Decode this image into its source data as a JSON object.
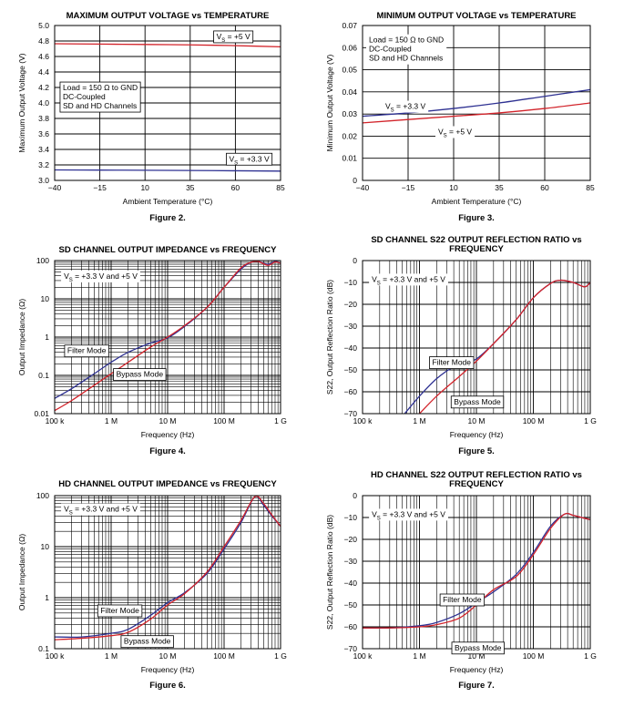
{
  "colors": {
    "red": "#d2232a",
    "blue": "#2e3192",
    "grid": "#000000"
  },
  "chart_data": [
    {
      "type": "line",
      "title": "MAXIMUM OUTPUT VOLTAGE vs TEMPERATURE",
      "figure": "Figure 2.",
      "xlabel": "Ambient Temperature (°C)",
      "ylabel": "Maximum Output Voltage (V)",
      "xscale": "linear",
      "yscale": "linear",
      "xlim": [
        -40,
        85
      ],
      "ylim": [
        3.0,
        5.0
      ],
      "xticks": [
        -40,
        -15,
        10,
        35,
        60,
        85
      ],
      "xtick_labels": [
        "−40",
        "−15",
        "10",
        "35",
        "60",
        "85"
      ],
      "yticks": [
        3.0,
        3.2,
        3.4,
        3.6,
        3.8,
        4.0,
        4.2,
        4.4,
        4.6,
        4.8,
        5.0
      ],
      "ytick_labels": [
        "3.0",
        "3.2",
        "3.4",
        "3.6",
        "3.8",
        "4.0",
        "4.2",
        "4.4",
        "4.6",
        "4.8",
        "5.0"
      ],
      "minor_x": [],
      "minor_y": [],
      "series": [
        {
          "name": "VS = +5 V",
          "color": "red",
          "x": [
            -40,
            -15,
            10,
            35,
            60,
            85
          ],
          "y": [
            4.765,
            4.76,
            4.755,
            4.75,
            4.74,
            4.725
          ]
        },
        {
          "name": "VS = +3.3 V",
          "color": "blue",
          "x": [
            -40,
            -15,
            10,
            35,
            60,
            85
          ],
          "y": [
            3.135,
            3.133,
            3.131,
            3.128,
            3.124,
            3.12
          ]
        }
      ],
      "annotations": [
        {
          "lines": [
            "Load = 150 Ω to GND",
            "DC-Coupled",
            "SD and HD Channels"
          ],
          "x": -37,
          "y": 4.27,
          "box": true
        },
        {
          "lines": [
            "V|S| = +5 V"
          ],
          "x": 48,
          "y": 4.93,
          "box": true
        },
        {
          "lines": [
            "V|S| = +3.3 V"
          ],
          "x": 55,
          "y": 3.35,
          "box": true
        }
      ]
    },
    {
      "type": "line",
      "title": "MINIMUM OUTPUT VOLTAGE vs TEMPERATURE",
      "figure": "Figure 3.",
      "xlabel": "Ambient Temperature (°C)",
      "ylabel": "Minimum Output Voltage (V)",
      "xscale": "linear",
      "yscale": "linear",
      "xlim": [
        -40,
        85
      ],
      "ylim": [
        0,
        0.07
      ],
      "xticks": [
        -40,
        -15,
        10,
        35,
        60,
        85
      ],
      "xtick_labels": [
        "−40",
        "−15",
        "10",
        "35",
        "60",
        "85"
      ],
      "yticks": [
        0,
        0.01,
        0.02,
        0.03,
        0.04,
        0.05,
        0.06,
        0.07
      ],
      "ytick_labels": [
        "0",
        "0.01",
        "0.02",
        "0.03",
        "0.04",
        "0.05",
        "0.06",
        "0.07"
      ],
      "minor_x": [],
      "minor_y": [],
      "series": [
        {
          "name": "VS = +3.3 V",
          "color": "blue",
          "x": [
            -40,
            -15,
            10,
            35,
            60,
            85
          ],
          "y": [
            0.029,
            0.0305,
            0.0325,
            0.035,
            0.038,
            0.041
          ]
        },
        {
          "name": "VS = +5 V",
          "color": "red",
          "x": [
            -40,
            -15,
            10,
            35,
            60,
            85
          ],
          "y": [
            0.026,
            0.0275,
            0.029,
            0.0305,
            0.0325,
            0.035
          ]
        }
      ],
      "annotations": [
        {
          "lines": [
            "Load = 150 Ω to GND",
            "DC-Coupled",
            "SD and HD Channels"
          ],
          "x": -38,
          "y": 0.066,
          "box": false
        },
        {
          "lines": [
            "V|S| = +3.3 V"
          ],
          "x": -29,
          "y": 0.036,
          "box": false
        },
        {
          "lines": [
            "V|S| = +5 V"
          ],
          "x": 0,
          "y": 0.0245,
          "box": false
        }
      ]
    },
    {
      "type": "line",
      "title": "SD CHANNEL OUTPUT IMPEDANCE vs FREQUENCY",
      "figure": "Figure 4.",
      "xlabel": "Frequency (Hz)",
      "ylabel": "Output Impedance (Ω)",
      "xscale": "log",
      "yscale": "log",
      "xlim": [
        100000,
        1000000000
      ],
      "ylim": [
        0.01,
        100
      ],
      "xticks": [
        100000,
        1000000,
        10000000,
        100000000,
        1000000000
      ],
      "xtick_labels": [
        "100 k",
        "1 M",
        "10 M",
        "100 M",
        "1 G"
      ],
      "yticks": [
        0.01,
        0.1,
        1,
        10,
        100
      ],
      "ytick_labels": [
        "0.01",
        "0.1",
        "1",
        "10",
        "100"
      ],
      "minor_x": "log",
      "minor_y": "log",
      "series": [
        {
          "name": "Filter Mode",
          "color": "blue",
          "x": [
            100000,
            200000,
            500000,
            1000000,
            2000000,
            5000000,
            10000000,
            20000000,
            50000000,
            100000000,
            200000000,
            300000000,
            400000000,
            600000000,
            800000000,
            1000000000
          ],
          "y": [
            0.025,
            0.045,
            0.11,
            0.22,
            0.4,
            0.7,
            0.95,
            1.9,
            6,
            20,
            60,
            90,
            95,
            80,
            95,
            85
          ]
        },
        {
          "name": "Bypass Mode",
          "color": "red",
          "x": [
            100000,
            200000,
            500000,
            1000000,
            2000000,
            5000000,
            10000000,
            20000000,
            50000000,
            100000000,
            200000000,
            300000000,
            400000000,
            600000000,
            800000000,
            1000000000
          ],
          "y": [
            0.012,
            0.022,
            0.055,
            0.11,
            0.22,
            0.55,
            1.0,
            2.0,
            6,
            20,
            65,
            90,
            95,
            75,
            92,
            85
          ]
        }
      ],
      "annotations": [
        {
          "lines": [
            "V|S| = +3.3 V and +5 V"
          ],
          "x": 130000,
          "y": 55,
          "box": false
        },
        {
          "lines": [
            "Filter Mode"
          ],
          "x": 150000,
          "y": 0.62,
          "box": true
        },
        {
          "lines": [
            "Bypass Mode"
          ],
          "x": 1100000,
          "y": 0.15,
          "box": true
        }
      ]
    },
    {
      "type": "line",
      "title": "SD CHANNEL S22 OUTPUT REFLECTION RATIO vs FREQUENCY",
      "title_lines": [
        "SD CHANNEL S22 OUTPUT REFLECTION RATIO vs",
        "FREQUENCY"
      ],
      "figure": "Figure 5.",
      "xlabel": "Frequency (Hz)",
      "ylabel": "S22, Output Reflection Ratio (dB)",
      "xscale": "log",
      "yscale": "linear",
      "xlim": [
        100000,
        1000000000
      ],
      "ylim": [
        -70,
        0
      ],
      "xticks": [
        100000,
        1000000,
        10000000,
        100000000,
        1000000000
      ],
      "xtick_labels": [
        "100 k",
        "1 M",
        "10 M",
        "100 M",
        "1 G"
      ],
      "yticks": [
        -70,
        -60,
        -50,
        -40,
        -30,
        -20,
        -10,
        0
      ],
      "ytick_labels": [
        "−70",
        "−60",
        "−50",
        "−40",
        "−30",
        "−20",
        "−10",
        "0"
      ],
      "minor_x": "log",
      "minor_y": [],
      "series": [
        {
          "name": "Filter Mode",
          "color": "blue",
          "x": [
            550000,
            1000000,
            2000000,
            4000000,
            7000000,
            10000000,
            20000000,
            50000000,
            100000000,
            200000000,
            300000000,
            500000000,
            800000000,
            1000000000
          ],
          "y": [
            -70,
            -62,
            -54,
            -48.5,
            -46,
            -45,
            -38,
            -27,
            -17,
            -10.5,
            -9,
            -10,
            -12,
            -10
          ]
        },
        {
          "name": "Bypass Mode",
          "color": "red",
          "x": [
            1000000,
            2000000,
            5000000,
            10000000,
            20000000,
            50000000,
            100000000,
            200000000,
            300000000,
            500000000,
            800000000,
            1000000000
          ],
          "y": [
            -70,
            -62,
            -53,
            -46,
            -38,
            -27,
            -17,
            -10.5,
            -9,
            -10,
            -12,
            -10
          ]
        }
      ],
      "annotations": [
        {
          "lines": [
            "V|S| = +3.3 V and +5 V"
          ],
          "x": 130000,
          "y": -6,
          "box": false
        },
        {
          "lines": [
            "Filter Mode"
          ],
          "x": 1500000,
          "y": -44,
          "box": true
        },
        {
          "lines": [
            "Bypass Mode"
          ],
          "x": 3600000,
          "y": -62,
          "box": true
        }
      ]
    },
    {
      "type": "line",
      "title": "HD CHANNEL OUTPUT IMPEDANCE vs FREQUENCY",
      "figure": "Figure 6.",
      "xlabel": "Frequency (Hz)",
      "ylabel": "Output Impedance (Ω)",
      "xscale": "log",
      "yscale": "log",
      "xlim": [
        100000,
        1000000000
      ],
      "ylim": [
        0.1,
        100
      ],
      "xticks": [
        100000,
        1000000,
        10000000,
        100000000,
        1000000000
      ],
      "xtick_labels": [
        "100 k",
        "1 M",
        "10 M",
        "100 M",
        "1 G"
      ],
      "yticks": [
        0.1,
        1,
        10,
        100
      ],
      "ytick_labels": [
        "0.1",
        "1",
        "10",
        "100"
      ],
      "minor_x": "log",
      "minor_y": "log",
      "series": [
        {
          "name": "Filter Mode",
          "color": "blue",
          "x": [
            100000,
            300000,
            1000000,
            2000000,
            5000000,
            10000000,
            20000000,
            50000000,
            100000000,
            200000000,
            350000000,
            500000000,
            700000000,
            1000000000
          ],
          "y": [
            0.17,
            0.17,
            0.2,
            0.24,
            0.45,
            0.8,
            1.25,
            3,
            9,
            30,
            95,
            65,
            40,
            25
          ]
        },
        {
          "name": "Bypass Mode",
          "color": "red",
          "x": [
            100000,
            300000,
            1000000,
            2000000,
            5000000,
            10000000,
            20000000,
            50000000,
            100000000,
            200000000,
            350000000,
            500000000,
            700000000,
            1000000000
          ],
          "y": [
            0.15,
            0.16,
            0.18,
            0.21,
            0.38,
            0.72,
            1.2,
            3.2,
            10,
            33,
            95,
            70,
            42,
            25
          ]
        }
      ],
      "annotations": [
        {
          "lines": [
            "V|S| = +3.3 V and +5 V"
          ],
          "x": 130000,
          "y": 70,
          "box": false
        },
        {
          "lines": [
            "Filter Mode"
          ],
          "x": 580000,
          "y": 0.72,
          "box": true
        },
        {
          "lines": [
            "Bypass Mode"
          ],
          "x": 1500000,
          "y": 0.18,
          "box": true
        }
      ]
    },
    {
      "type": "line",
      "title": "HD CHANNEL S22 OUTPUT REFLECTION RATIO vs FREQUENCY",
      "title_lines": [
        "HD CHANNEL S22 OUTPUT REFLECTION RATIO vs",
        "FREQUENCY"
      ],
      "figure": "Figure 7.",
      "xlabel": "Frequency (Hz)",
      "ylabel": "S22, Output Reflection Ratio (dB)",
      "xscale": "log",
      "yscale": "linear",
      "xlim": [
        100000,
        1000000000
      ],
      "ylim": [
        -70,
        0
      ],
      "xticks": [
        100000,
        1000000,
        10000000,
        100000000,
        1000000000
      ],
      "xtick_labels": [
        "100 k",
        "1 M",
        "10 M",
        "100 M",
        "1 G"
      ],
      "yticks": [
        -70,
        -60,
        -50,
        -40,
        -30,
        -20,
        -10,
        0
      ],
      "ytick_labels": [
        "−70",
        "−60",
        "−50",
        "−40",
        "−30",
        "−20",
        "−10",
        "0"
      ],
      "minor_x": "log",
      "minor_y": [],
      "series": [
        {
          "name": "Filter Mode",
          "color": "blue",
          "x": [
            100000,
            300000,
            1000000,
            2000000,
            5000000,
            10000000,
            20000000,
            50000000,
            100000000,
            200000000,
            350000000,
            500000000,
            700000000,
            1000000000
          ],
          "y": [
            -60.5,
            -60.5,
            -59.5,
            -58,
            -54,
            -49,
            -44,
            -36,
            -26,
            -14,
            -8.5,
            -9,
            -10,
            -11
          ]
        },
        {
          "name": "Bypass Mode",
          "color": "red",
          "x": [
            100000,
            300000,
            1000000,
            2000000,
            5000000,
            10000000,
            20000000,
            50000000,
            100000000,
            200000000,
            350000000,
            500000000,
            700000000,
            1000000000
          ],
          "y": [
            -60.5,
            -60.5,
            -60,
            -59,
            -56,
            -50,
            -43,
            -37,
            -27,
            -15,
            -8.5,
            -9,
            -10,
            -11
          ]
        }
      ],
      "annotations": [
        {
          "lines": [
            "V|S| = +3.3 V and +5 V"
          ],
          "x": 130000,
          "y": -6,
          "box": false
        },
        {
          "lines": [
            "Filter Mode"
          ],
          "x": 2300000,
          "y": -45,
          "box": true
        },
        {
          "lines": [
            "Bypass Mode"
          ],
          "x": 3700000,
          "y": -67,
          "box": true
        }
      ]
    }
  ]
}
